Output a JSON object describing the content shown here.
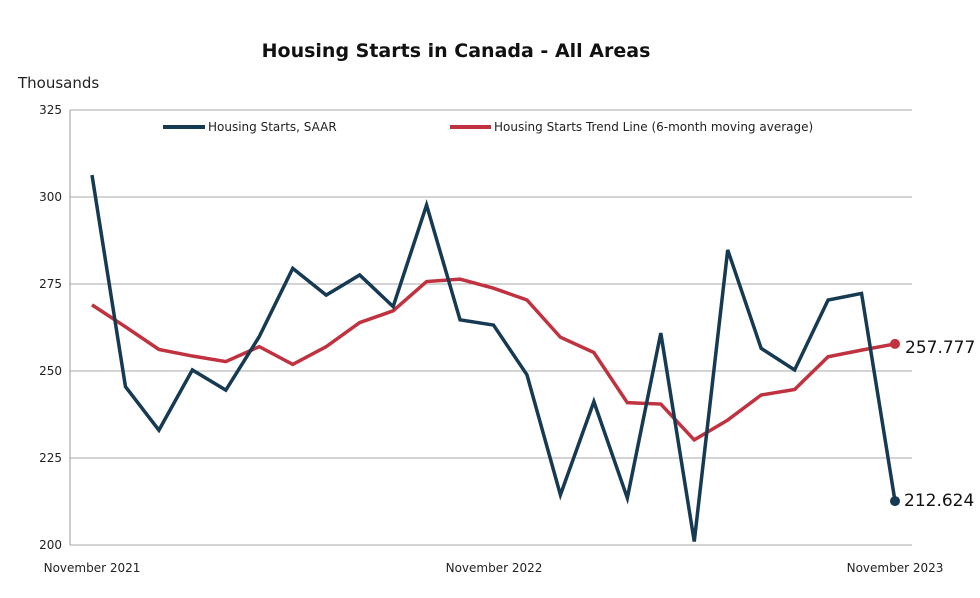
{
  "chart_data": {
    "type": "line",
    "title": "Housing Starts in Canada - All Areas",
    "ylabel": "Thousands",
    "xlabel": "",
    "ylim": [
      200,
      325
    ],
    "yticks": [
      "200",
      "225",
      "250",
      "275",
      "300",
      "325"
    ],
    "xtick_labels": [
      "November 2021",
      "November 2022",
      "November 2023"
    ],
    "grid": true,
    "legend": "top",
    "x": [
      "2021-11",
      "2021-12",
      "2022-01",
      "2022-02",
      "2022-03",
      "2022-04",
      "2022-05",
      "2022-06",
      "2022-07",
      "2022-08",
      "2022-09",
      "2022-10",
      "2022-11",
      "2022-12",
      "2023-01",
      "2023-02",
      "2023-03",
      "2023-04",
      "2023-05",
      "2023-06",
      "2023-07",
      "2023-08",
      "2023-09",
      "2023-10",
      "2023-11"
    ],
    "series": [
      {
        "name": "Housing Starts, SAAR",
        "color": "#163a52",
        "values": [
          306.3,
          245.5,
          233.0,
          250.3,
          244.5,
          259.9,
          279.5,
          271.8,
          277.6,
          268.5,
          297.7,
          264.7,
          263.2,
          248.9,
          214.4,
          241.2,
          213.5,
          260.9,
          201.0,
          284.8,
          256.5,
          250.3,
          270.4,
          272.3,
          212.624
        ],
        "end_label": "212.624"
      },
      {
        "name": "Housing Starts Trend Line (6-month moving average)",
        "color": "#c0323f",
        "values": [
          269.0,
          262.7,
          256.2,
          254.3,
          252.7,
          257.0,
          251.9,
          257.0,
          263.9,
          267.3,
          275.7,
          276.4,
          273.8,
          270.4,
          259.7,
          255.3,
          240.9,
          240.5,
          230.2,
          235.9,
          243.1,
          244.7,
          254.1,
          256.0,
          257.777
        ],
        "end_label": "257.777"
      }
    ]
  }
}
